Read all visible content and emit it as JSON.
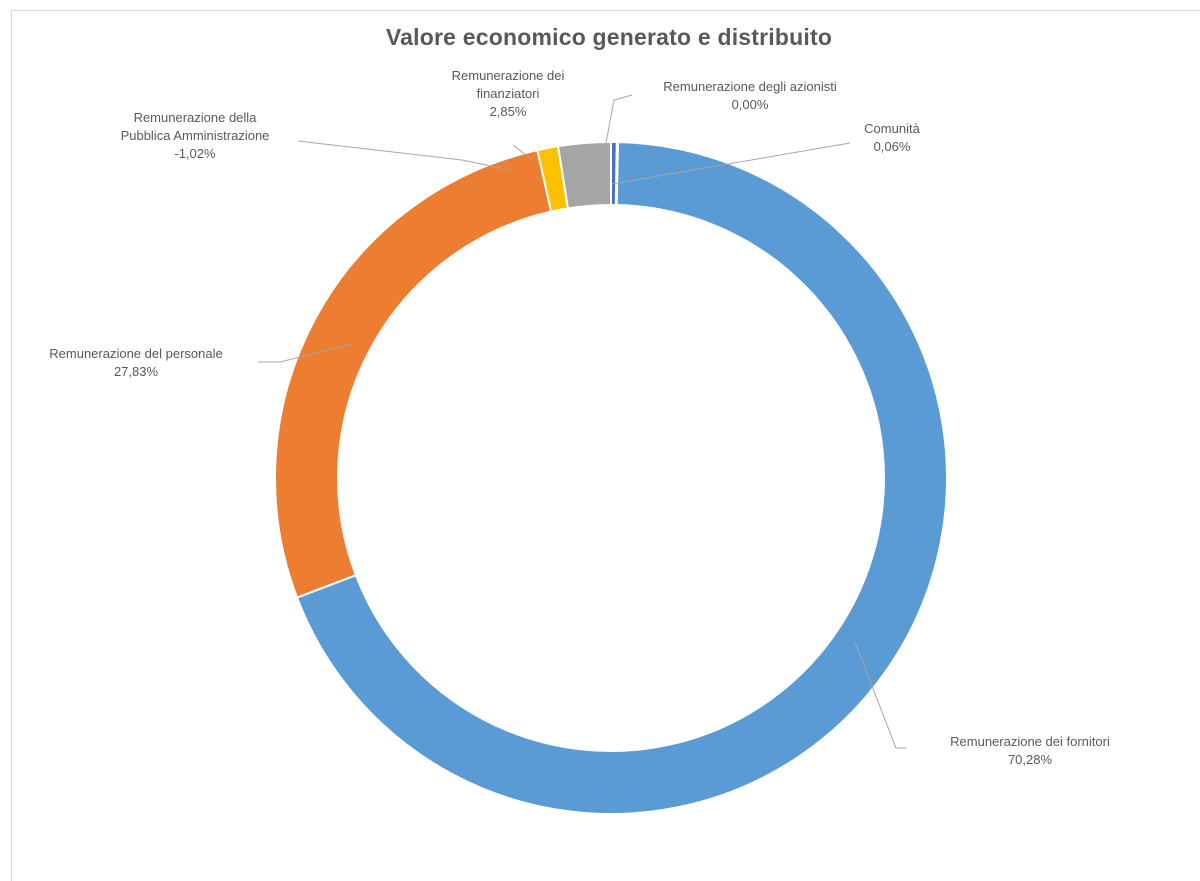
{
  "chart_data": {
    "type": "pie",
    "style": "donut",
    "title": "Valore economico generato e distribuito",
    "slices": [
      {
        "name": "Comunità",
        "value": 0.06,
        "label": "0,06%",
        "color": "#4472c4"
      },
      {
        "name": "Remunerazione dei fornitori",
        "value": 70.28,
        "label": "70,28%",
        "color": "#5b9bd5"
      },
      {
        "name": "Remunerazione del personale",
        "value": 27.83,
        "label": "27,83%",
        "color": "#ed7d31"
      },
      {
        "name": "Remunerazione della Pubblica Amministrazione",
        "value": -1.02,
        "label": "-1,02%",
        "color": "#ffc000"
      },
      {
        "name": "Remunerazione dei finanziatori",
        "value": 2.85,
        "label": "2,85%",
        "color": "#a5a5a5"
      },
      {
        "name": "Remunerazione degli azionisti",
        "value": 0.0,
        "label": "0,00%",
        "color": "#4472c4"
      }
    ],
    "label_lines": {
      "Comunità": [
        "Comunità",
        "0,06%"
      ],
      "Remunerazione dei fornitori": [
        "Remunerazione dei fornitori",
        "70,28%"
      ],
      "Remunerazione del personale": [
        "Remunerazione del personale",
        "27,83%"
      ],
      "Remunerazione della Pubblica Amministrazione": [
        "Remunerazione della",
        "Pubblica Amministrazione",
        "-1,02%"
      ],
      "Remunerazione dei finanziatori": [
        "Remunerazione dei",
        "finanziatori",
        "2,85%"
      ],
      "Remunerazione degli azionisti": [
        "Remunerazione degli azionisti",
        "0,00%"
      ]
    },
    "legend": "none"
  }
}
